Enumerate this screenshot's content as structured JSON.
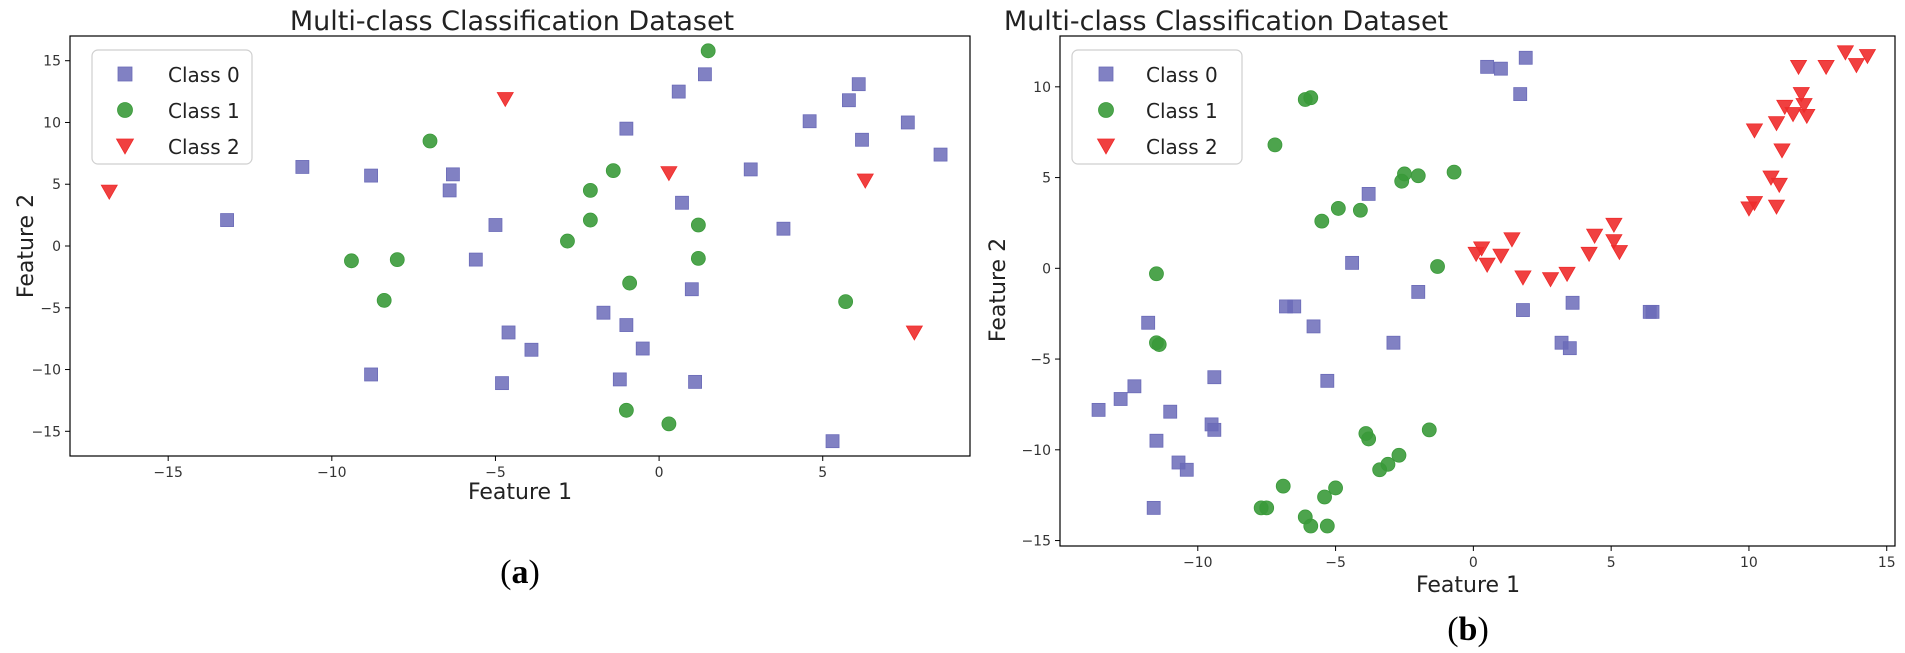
{
  "chart_data": [
    {
      "type": "scatter",
      "title": "Multi-class Classification Dataset",
      "xlabel": "Feature 1",
      "ylabel": "Feature 2",
      "xlim": [
        -18,
        9.5
      ],
      "ylim": [
        -17,
        17
      ],
      "xticks": [
        -15,
        -10,
        -5,
        0,
        5
      ],
      "yticks": [
        -15,
        -10,
        -5,
        0,
        5,
        10,
        15
      ],
      "legend": "top-left",
      "caption": [
        "(",
        "a",
        ")"
      ],
      "series": [
        {
          "name": "Class 0",
          "marker": "square",
          "color": "#6b6bb8",
          "points": [
            [
              -13.2,
              2.1
            ],
            [
              -10.9,
              6.4
            ],
            [
              -8.8,
              5.7
            ],
            [
              -6.3,
              5.8
            ],
            [
              -6.4,
              4.5
            ],
            [
              -5,
              1.7
            ],
            [
              -5.6,
              -1.1
            ],
            [
              -4.6,
              -7
            ],
            [
              -3.9,
              -8.4
            ],
            [
              -4.8,
              -11.1
            ],
            [
              -8.8,
              -10.4
            ],
            [
              -1.7,
              -5.4
            ],
            [
              -1,
              -6.4
            ],
            [
              -1.2,
              -10.8
            ],
            [
              -0.5,
              -8.3
            ],
            [
              -1,
              9.5
            ],
            [
              0.6,
              12.5
            ],
            [
              1.4,
              13.9
            ],
            [
              0.7,
              3.5
            ],
            [
              1,
              -3.5
            ],
            [
              1.1,
              -11
            ],
            [
              2.8,
              6.2
            ],
            [
              3.8,
              1.4
            ],
            [
              4.6,
              10.1
            ],
            [
              5.8,
              11.8
            ],
            [
              6.1,
              13.1
            ],
            [
              6.2,
              8.6
            ],
            [
              7.6,
              10
            ],
            [
              8.6,
              7.4
            ],
            [
              5.3,
              -15.8
            ]
          ]
        },
        {
          "name": "Class 1",
          "marker": "circle",
          "color": "#3a9a3a",
          "points": [
            [
              -7,
              8.5
            ],
            [
              -9.4,
              -1.2
            ],
            [
              -8,
              -1.1
            ],
            [
              -8.4,
              -4.4
            ],
            [
              -2.8,
              0.4
            ],
            [
              -2.1,
              2.1
            ],
            [
              -2.1,
              4.5
            ],
            [
              -1.4,
              6.1
            ],
            [
              1.5,
              15.8
            ],
            [
              1.2,
              1.7
            ],
            [
              1.2,
              -1
            ],
            [
              -0.9,
              -3
            ],
            [
              5.7,
              -4.5
            ],
            [
              -1,
              -13.3
            ],
            [
              0.3,
              -14.4
            ]
          ]
        },
        {
          "name": "Class 2",
          "marker": "triangle-down",
          "color": "#ee2b2b",
          "points": [
            [
              -16.8,
              4.4
            ],
            [
              -4.7,
              11.9
            ],
            [
              0.3,
              5.9
            ],
            [
              6.3,
              5.3
            ],
            [
              7.8,
              -7
            ]
          ]
        }
      ]
    },
    {
      "type": "scatter",
      "title": "Multi-class Classification Dataset",
      "xlabel": "Feature 1",
      "ylabel": "Feature 2",
      "xlim": [
        -15,
        15.3
      ],
      "ylim": [
        -15.3,
        12.8
      ],
      "xticks": [
        -10,
        -5,
        0,
        5,
        10,
        15
      ],
      "yticks": [
        -15,
        -10,
        -5,
        0,
        5,
        10
      ],
      "legend": "top-left",
      "caption": [
        "(",
        "b",
        ")"
      ],
      "series": [
        {
          "name": "Class 0",
          "marker": "square",
          "color": "#6b6bb8",
          "points": [
            [
              0.5,
              11.1
            ],
            [
              1,
              11
            ],
            [
              1.9,
              11.6
            ],
            [
              1.7,
              9.6
            ],
            [
              -3.8,
              4.1
            ],
            [
              -4.4,
              0.3
            ],
            [
              -2,
              -1.3
            ],
            [
              -6.8,
              -2.1
            ],
            [
              -6.5,
              -2.1
            ],
            [
              -5.8,
              -3.2
            ],
            [
              -2.9,
              -4.1
            ],
            [
              -5.3,
              -6.2
            ],
            [
              1.8,
              -2.3
            ],
            [
              3.6,
              -1.9
            ],
            [
              3.2,
              -4.1
            ],
            [
              3.5,
              -4.4
            ],
            [
              6.4,
              -2.4
            ],
            [
              6.5,
              -2.4
            ],
            [
              -11.8,
              -3
            ],
            [
              -12.3,
              -6.5
            ],
            [
              -12.8,
              -7.2
            ],
            [
              -13.6,
              -7.8
            ],
            [
              -11,
              -7.9
            ],
            [
              -9.4,
              -6
            ],
            [
              -9.5,
              -8.6
            ],
            [
              -9.4,
              -8.9
            ],
            [
              -11.5,
              -9.5
            ],
            [
              -10.7,
              -10.7
            ],
            [
              -10.4,
              -11.1
            ],
            [
              -11.6,
              -13.2
            ]
          ]
        },
        {
          "name": "Class 1",
          "marker": "circle",
          "color": "#3a9a3a",
          "points": [
            [
              -6.1,
              9.3
            ],
            [
              -5.9,
              9.4
            ],
            [
              -7.2,
              6.8
            ],
            [
              -11.5,
              -0.3
            ],
            [
              -11.5,
              -4.1
            ],
            [
              -11.4,
              -4.2
            ],
            [
              -4.9,
              3.3
            ],
            [
              -5.5,
              2.6
            ],
            [
              -4.1,
              3.2
            ],
            [
              -2.5,
              5.2
            ],
            [
              -2.6,
              4.8
            ],
            [
              -2,
              5.1
            ],
            [
              -0.7,
              5.3
            ],
            [
              -1.3,
              0.1
            ],
            [
              -3.9,
              -9.1
            ],
            [
              -3.8,
              -9.4
            ],
            [
              -1.6,
              -8.9
            ],
            [
              -2.7,
              -10.3
            ],
            [
              -3.1,
              -10.8
            ],
            [
              -3.4,
              -11.1
            ],
            [
              -5,
              -12.1
            ],
            [
              -6.9,
              -12
            ],
            [
              -5.4,
              -12.6
            ],
            [
              -7.7,
              -13.2
            ],
            [
              -7.5,
              -13.2
            ],
            [
              -6.1,
              -13.7
            ],
            [
              -5.9,
              -14.2
            ],
            [
              -5.3,
              -14.2
            ]
          ]
        },
        {
          "name": "Class 2",
          "marker": "triangle-down",
          "color": "#ee2b2b",
          "points": [
            [
              0.1,
              0.8
            ],
            [
              0.3,
              1.1
            ],
            [
              0.5,
              0.2
            ],
            [
              1,
              0.7
            ],
            [
              1.4,
              1.6
            ],
            [
              1.8,
              -0.5
            ],
            [
              2.8,
              -0.6
            ],
            [
              3.4,
              -0.3
            ],
            [
              4.2,
              0.8
            ],
            [
              4.4,
              1.8
            ],
            [
              5.1,
              2.4
            ],
            [
              5.1,
              1.5
            ],
            [
              5.3,
              0.9
            ],
            [
              10,
              3.3
            ],
            [
              10.2,
              3.6
            ],
            [
              11,
              3.4
            ],
            [
              10.8,
              5
            ],
            [
              11.1,
              4.6
            ],
            [
              11.2,
              6.5
            ],
            [
              10.2,
              7.6
            ],
            [
              11,
              8
            ],
            [
              11.3,
              8.9
            ],
            [
              11.6,
              8.5
            ],
            [
              12.1,
              8.4
            ],
            [
              11.9,
              9.6
            ],
            [
              12,
              9
            ],
            [
              11.8,
              11.1
            ],
            [
              12.8,
              11.1
            ],
            [
              13.5,
              11.9
            ],
            [
              13.9,
              11.2
            ],
            [
              14.3,
              11.7
            ]
          ]
        }
      ]
    }
  ]
}
